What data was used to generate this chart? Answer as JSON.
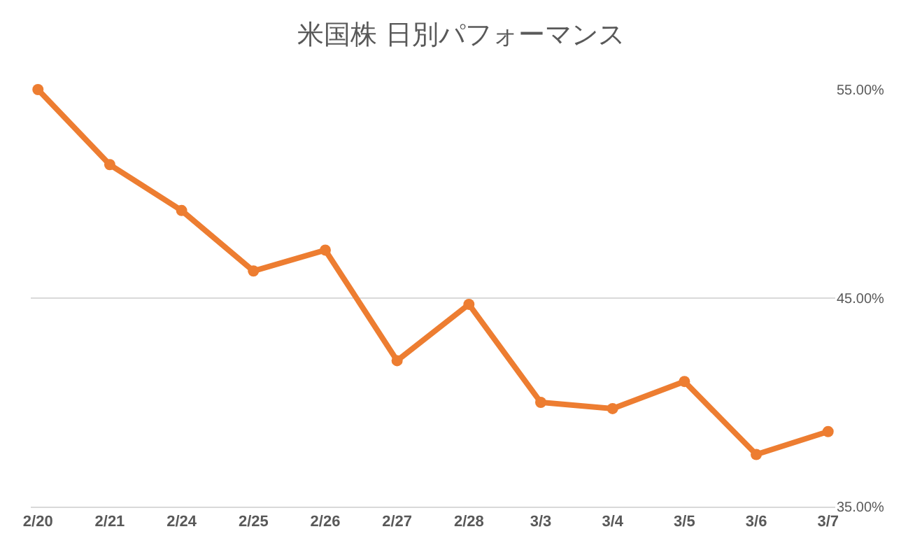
{
  "chart_data": {
    "type": "line",
    "title": "米国株 日別パフォーマンス",
    "categories": [
      "2/20",
      "2/21",
      "2/24",
      "2/25",
      "2/26",
      "2/27",
      "2/28",
      "3/3",
      "3/4",
      "3/5",
      "3/6",
      "3/7"
    ],
    "series": [
      {
        "color": "#ed7d31",
        "values": [
          55.0,
          51.4,
          49.2,
          46.3,
          47.3,
          42.0,
          44.7,
          40.0,
          39.7,
          41.0,
          37.5,
          38.6
        ]
      }
    ],
    "ylim": [
      35,
      55
    ],
    "yticks": [
      {
        "value": 35,
        "label": "35.00%"
      },
      {
        "value": 45,
        "label": "45.00%"
      },
      {
        "value": 55,
        "label": "55.00%"
      }
    ],
    "grid": "y",
    "marker": "circle",
    "line_style": "solid",
    "legend": false
  }
}
